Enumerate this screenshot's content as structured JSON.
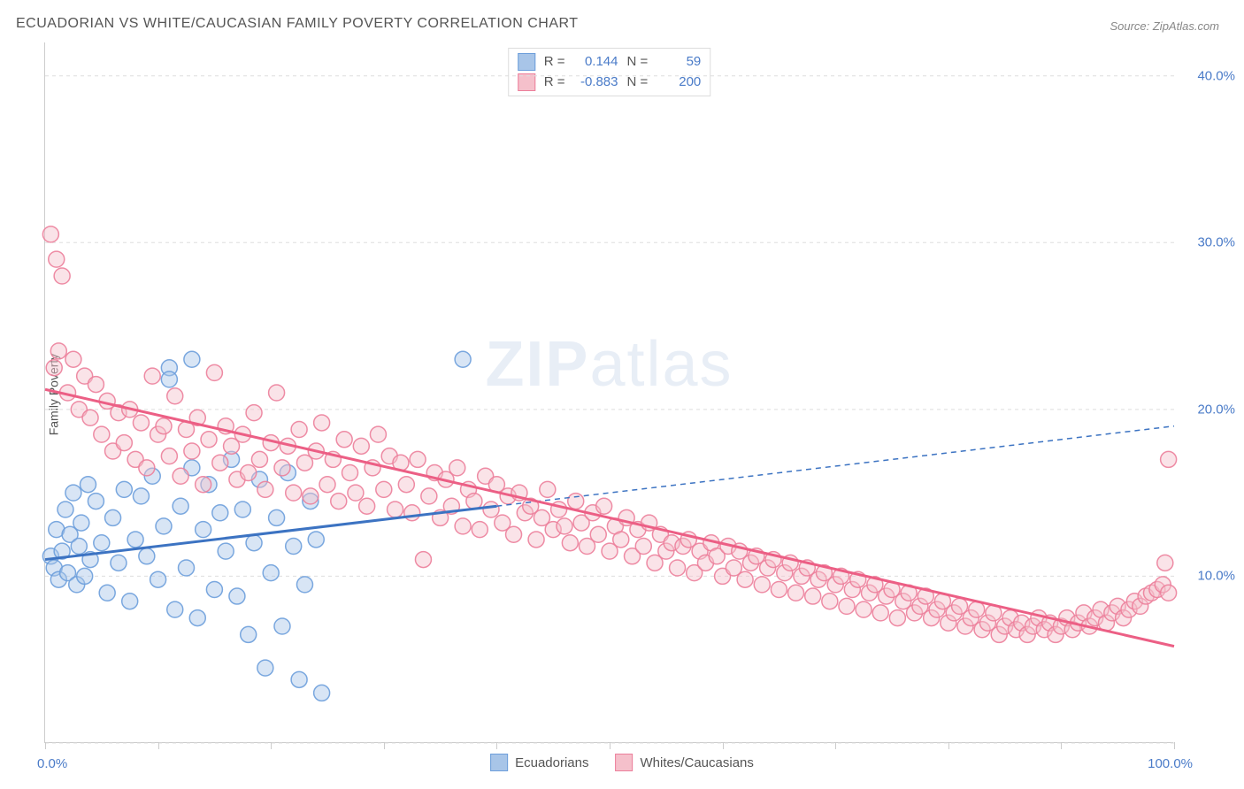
{
  "title": "ECUADORIAN VS WHITE/CAUCASIAN FAMILY POVERTY CORRELATION CHART",
  "source": "Source: ZipAtlas.com",
  "ylabel": "Family Poverty",
  "watermark": {
    "bold": "ZIP",
    "light": "atlas"
  },
  "chart": {
    "type": "scatter",
    "xlim": [
      0,
      100
    ],
    "ylim": [
      0,
      42
    ],
    "x_tick_positions": [
      0,
      10,
      20,
      30,
      40,
      50,
      60,
      70,
      80,
      90,
      100
    ],
    "x_tick_labels": {
      "0": "0.0%",
      "100": "100.0%"
    },
    "y_gridlines": [
      0,
      10,
      20,
      30,
      40
    ],
    "y_tick_labels": {
      "10": "10.0%",
      "20": "20.0%",
      "30": "30.0%",
      "40": "40.0%"
    },
    "background_color": "#ffffff",
    "grid_color": "#dddddd",
    "axis_color": "#cccccc",
    "tick_label_color": "#4a7bc8",
    "marker_radius": 9,
    "marker_opacity": 0.45,
    "marker_stroke_opacity": 0.9,
    "line_width": 3
  },
  "series": [
    {
      "name": "Ecuadorians",
      "color_fill": "#a8c5e8",
      "color_stroke": "#6d9edb",
      "R": "0.144",
      "N": "59",
      "trend": {
        "x1": 0,
        "y1": 11.0,
        "x2": 100,
        "y2": 19.0,
        "solid_until_x": 40,
        "color": "#3c73c2"
      },
      "points": [
        [
          0.5,
          11.2
        ],
        [
          0.8,
          10.5
        ],
        [
          1.0,
          12.8
        ],
        [
          1.2,
          9.8
        ],
        [
          1.5,
          11.5
        ],
        [
          1.8,
          14.0
        ],
        [
          2.0,
          10.2
        ],
        [
          2.2,
          12.5
        ],
        [
          2.5,
          15.0
        ],
        [
          2.8,
          9.5
        ],
        [
          3.0,
          11.8
        ],
        [
          3.2,
          13.2
        ],
        [
          3.5,
          10.0
        ],
        [
          3.8,
          15.5
        ],
        [
          4.0,
          11.0
        ],
        [
          4.5,
          14.5
        ],
        [
          5.0,
          12.0
        ],
        [
          5.5,
          9.0
        ],
        [
          6.0,
          13.5
        ],
        [
          6.5,
          10.8
        ],
        [
          7.0,
          15.2
        ],
        [
          7.5,
          8.5
        ],
        [
          8.0,
          12.2
        ],
        [
          8.5,
          14.8
        ],
        [
          9.0,
          11.2
        ],
        [
          9.5,
          16.0
        ],
        [
          10.0,
          9.8
        ],
        [
          10.5,
          13.0
        ],
        [
          11.0,
          22.5
        ],
        [
          11.5,
          8.0
        ],
        [
          12.0,
          14.2
        ],
        [
          12.5,
          10.5
        ],
        [
          13.0,
          16.5
        ],
        [
          13.5,
          7.5
        ],
        [
          14.0,
          12.8
        ],
        [
          14.5,
          15.5
        ],
        [
          15.0,
          9.2
        ],
        [
          15.5,
          13.8
        ],
        [
          16.0,
          11.5
        ],
        [
          16.5,
          17.0
        ],
        [
          17.0,
          8.8
        ],
        [
          17.5,
          14.0
        ],
        [
          18.0,
          6.5
        ],
        [
          18.5,
          12.0
        ],
        [
          19.0,
          15.8
        ],
        [
          19.5,
          4.5
        ],
        [
          20.0,
          10.2
        ],
        [
          20.5,
          13.5
        ],
        [
          21.0,
          7.0
        ],
        [
          21.5,
          16.2
        ],
        [
          22.0,
          11.8
        ],
        [
          22.5,
          3.8
        ],
        [
          23.0,
          9.5
        ],
        [
          23.5,
          14.5
        ],
        [
          24.0,
          12.2
        ],
        [
          24.5,
          3.0
        ],
        [
          11.0,
          21.8
        ],
        [
          13.0,
          23.0
        ],
        [
          37.0,
          23.0
        ]
      ]
    },
    {
      "name": "Whites/Caucasians",
      "color_fill": "#f5c0cb",
      "color_stroke": "#ec7f9b",
      "R": "-0.883",
      "N": "200",
      "trend": {
        "x1": 0,
        "y1": 21.2,
        "x2": 100,
        "y2": 5.8,
        "solid_until_x": 100,
        "color": "#ec5f85"
      },
      "points": [
        [
          0.5,
          30.5
        ],
        [
          1.0,
          29.0
        ],
        [
          1.5,
          28.0
        ],
        [
          0.8,
          22.5
        ],
        [
          1.2,
          23.5
        ],
        [
          2.0,
          21.0
        ],
        [
          2.5,
          23.0
        ],
        [
          3.0,
          20.0
        ],
        [
          3.5,
          22.0
        ],
        [
          4.0,
          19.5
        ],
        [
          4.5,
          21.5
        ],
        [
          5.0,
          18.5
        ],
        [
          5.5,
          20.5
        ],
        [
          6.0,
          17.5
        ],
        [
          6.5,
          19.8
        ],
        [
          7.0,
          18.0
        ],
        [
          7.5,
          20.0
        ],
        [
          8.0,
          17.0
        ],
        [
          8.5,
          19.2
        ],
        [
          9.0,
          16.5
        ],
        [
          9.5,
          22.0
        ],
        [
          10.0,
          18.5
        ],
        [
          10.5,
          19.0
        ],
        [
          11.0,
          17.2
        ],
        [
          11.5,
          20.8
        ],
        [
          12.0,
          16.0
        ],
        [
          12.5,
          18.8
        ],
        [
          13.0,
          17.5
        ],
        [
          13.5,
          19.5
        ],
        [
          14.0,
          15.5
        ],
        [
          14.5,
          18.2
        ],
        [
          15.0,
          22.2
        ],
        [
          15.5,
          16.8
        ],
        [
          16.0,
          19.0
        ],
        [
          16.5,
          17.8
        ],
        [
          17.0,
          15.8
        ],
        [
          17.5,
          18.5
        ],
        [
          18.0,
          16.2
        ],
        [
          18.5,
          19.8
        ],
        [
          19.0,
          17.0
        ],
        [
          19.5,
          15.2
        ],
        [
          20.0,
          18.0
        ],
        [
          20.5,
          21.0
        ],
        [
          21.0,
          16.5
        ],
        [
          21.5,
          17.8
        ],
        [
          22.0,
          15.0
        ],
        [
          22.5,
          18.8
        ],
        [
          23.0,
          16.8
        ],
        [
          23.5,
          14.8
        ],
        [
          24.0,
          17.5
        ],
        [
          24.5,
          19.2
        ],
        [
          25.0,
          15.5
        ],
        [
          25.5,
          17.0
        ],
        [
          26.0,
          14.5
        ],
        [
          26.5,
          18.2
        ],
        [
          27.0,
          16.2
        ],
        [
          27.5,
          15.0
        ],
        [
          28.0,
          17.8
        ],
        [
          28.5,
          14.2
        ],
        [
          29.0,
          16.5
        ],
        [
          29.5,
          18.5
        ],
        [
          30.0,
          15.2
        ],
        [
          30.5,
          17.2
        ],
        [
          31.0,
          14.0
        ],
        [
          31.5,
          16.8
        ],
        [
          32.0,
          15.5
        ],
        [
          32.5,
          13.8
        ],
        [
          33.0,
          17.0
        ],
        [
          33.5,
          11.0
        ],
        [
          34.0,
          14.8
        ],
        [
          34.5,
          16.2
        ],
        [
          35.0,
          13.5
        ],
        [
          35.5,
          15.8
        ],
        [
          36.0,
          14.2
        ],
        [
          36.5,
          16.5
        ],
        [
          37.0,
          13.0
        ],
        [
          37.5,
          15.2
        ],
        [
          38.0,
          14.5
        ],
        [
          38.5,
          12.8
        ],
        [
          39.0,
          16.0
        ],
        [
          39.5,
          14.0
        ],
        [
          40.0,
          15.5
        ],
        [
          40.5,
          13.2
        ],
        [
          41.0,
          14.8
        ],
        [
          41.5,
          12.5
        ],
        [
          42.0,
          15.0
        ],
        [
          42.5,
          13.8
        ],
        [
          43.0,
          14.2
        ],
        [
          43.5,
          12.2
        ],
        [
          44.0,
          13.5
        ],
        [
          44.5,
          15.2
        ],
        [
          45.0,
          12.8
        ],
        [
          45.5,
          14.0
        ],
        [
          46.0,
          13.0
        ],
        [
          46.5,
          12.0
        ],
        [
          47.0,
          14.5
        ],
        [
          47.5,
          13.2
        ],
        [
          48.0,
          11.8
        ],
        [
          48.5,
          13.8
        ],
        [
          49.0,
          12.5
        ],
        [
          49.5,
          14.2
        ],
        [
          50.0,
          11.5
        ],
        [
          50.5,
          13.0
        ],
        [
          51.0,
          12.2
        ],
        [
          51.5,
          13.5
        ],
        [
          52.0,
          11.2
        ],
        [
          52.5,
          12.8
        ],
        [
          53.0,
          11.8
        ],
        [
          53.5,
          13.2
        ],
        [
          54.0,
          10.8
        ],
        [
          54.5,
          12.5
        ],
        [
          55.0,
          11.5
        ],
        [
          55.5,
          12.0
        ],
        [
          56.0,
          10.5
        ],
        [
          56.5,
          11.8
        ],
        [
          57.0,
          12.2
        ],
        [
          57.5,
          10.2
        ],
        [
          58.0,
          11.5
        ],
        [
          58.5,
          10.8
        ],
        [
          59.0,
          12.0
        ],
        [
          59.5,
          11.2
        ],
        [
          60.0,
          10.0
        ],
        [
          60.5,
          11.8
        ],
        [
          61.0,
          10.5
        ],
        [
          61.5,
          11.5
        ],
        [
          62.0,
          9.8
        ],
        [
          62.5,
          10.8
        ],
        [
          63.0,
          11.2
        ],
        [
          63.5,
          9.5
        ],
        [
          64.0,
          10.5
        ],
        [
          64.5,
          11.0
        ],
        [
          65.0,
          9.2
        ],
        [
          65.5,
          10.2
        ],
        [
          66.0,
          10.8
        ],
        [
          66.5,
          9.0
        ],
        [
          67.0,
          10.0
        ],
        [
          67.5,
          10.5
        ],
        [
          68.0,
          8.8
        ],
        [
          68.5,
          9.8
        ],
        [
          69.0,
          10.2
        ],
        [
          69.5,
          8.5
        ],
        [
          70.0,
          9.5
        ],
        [
          70.5,
          10.0
        ],
        [
          71.0,
          8.2
        ],
        [
          71.5,
          9.2
        ],
        [
          72.0,
          9.8
        ],
        [
          72.5,
          8.0
        ],
        [
          73.0,
          9.0
        ],
        [
          73.5,
          9.5
        ],
        [
          74.0,
          7.8
        ],
        [
          74.5,
          8.8
        ],
        [
          75.0,
          9.2
        ],
        [
          75.5,
          7.5
        ],
        [
          76.0,
          8.5
        ],
        [
          76.5,
          9.0
        ],
        [
          77.0,
          7.8
        ],
        [
          77.5,
          8.2
        ],
        [
          78.0,
          8.8
        ],
        [
          78.5,
          7.5
        ],
        [
          79.0,
          8.0
        ],
        [
          79.5,
          8.5
        ],
        [
          80.0,
          7.2
        ],
        [
          80.5,
          7.8
        ],
        [
          81.0,
          8.2
        ],
        [
          81.5,
          7.0
        ],
        [
          82.0,
          7.5
        ],
        [
          82.5,
          8.0
        ],
        [
          83.0,
          6.8
        ],
        [
          83.5,
          7.2
        ],
        [
          84.0,
          7.8
        ],
        [
          84.5,
          6.5
        ],
        [
          85.0,
          7.0
        ],
        [
          85.5,
          7.5
        ],
        [
          86.0,
          6.8
        ],
        [
          86.5,
          7.2
        ],
        [
          87.0,
          6.5
        ],
        [
          87.5,
          7.0
        ],
        [
          88.0,
          7.5
        ],
        [
          88.5,
          6.8
        ],
        [
          89.0,
          7.2
        ],
        [
          89.5,
          6.5
        ],
        [
          90.0,
          7.0
        ],
        [
          90.5,
          7.5
        ],
        [
          91.0,
          6.8
        ],
        [
          91.5,
          7.2
        ],
        [
          92.0,
          7.8
        ],
        [
          92.5,
          7.0
        ],
        [
          93.0,
          7.5
        ],
        [
          93.5,
          8.0
        ],
        [
          94.0,
          7.2
        ],
        [
          94.5,
          7.8
        ],
        [
          95.0,
          8.2
        ],
        [
          95.5,
          7.5
        ],
        [
          96.0,
          8.0
        ],
        [
          96.5,
          8.5
        ],
        [
          97.0,
          8.2
        ],
        [
          97.5,
          8.8
        ],
        [
          98.0,
          9.0
        ],
        [
          98.5,
          9.2
        ],
        [
          99.0,
          9.5
        ],
        [
          99.2,
          10.8
        ],
        [
          99.5,
          9.0
        ],
        [
          99.5,
          17.0
        ]
      ]
    }
  ],
  "legend": {
    "items": [
      {
        "label": "Ecuadorians",
        "fill": "#a8c5e8",
        "stroke": "#6d9edb"
      },
      {
        "label": "Whites/Caucasians",
        "fill": "#f5c0cb",
        "stroke": "#ec7f9b"
      }
    ]
  }
}
